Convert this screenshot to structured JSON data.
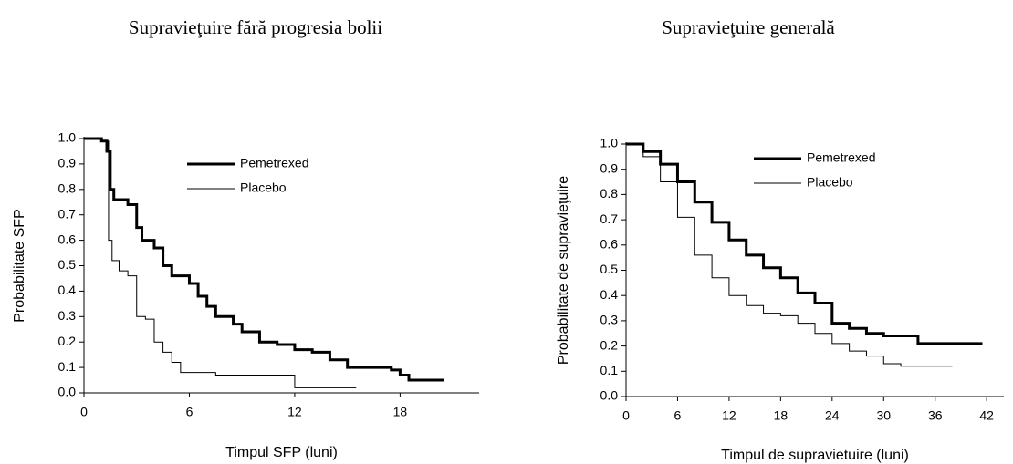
{
  "chart_data": [
    {
      "type": "line",
      "step": true,
      "title": "Supravieţuire fără progresia bolii",
      "x_label": "Timpul SFP (luni)",
      "y_label": "Probabilitate SFP",
      "xlim": [
        0,
        22.5
      ],
      "ylim": [
        0,
        1
      ],
      "xticks": [
        0,
        6,
        12,
        18
      ],
      "yticks": [
        {
          "value": 0,
          "label": "0.0"
        },
        0.1,
        0.2,
        0.3,
        0.4,
        0.5,
        0.6,
        0.7,
        0.8,
        0.9,
        {
          "value": 1,
          "label": "1.0"
        }
      ],
      "series": [
        {
          "name": "Pemetrexed",
          "color": "#000000",
          "line_width": 3,
          "x": [
            0,
            1,
            1.3,
            1.5,
            1.7,
            2.5,
            3,
            3.3,
            4,
            4.5,
            5,
            6,
            6.5,
            7,
            7.5,
            8.5,
            9,
            10,
            11,
            12,
            13,
            14,
            15,
            17.5,
            18,
            18.5,
            20.5
          ],
          "values": [
            1.0,
            0.99,
            0.95,
            0.8,
            0.76,
            0.74,
            0.65,
            0.6,
            0.57,
            0.5,
            0.46,
            0.43,
            0.38,
            0.34,
            0.3,
            0.27,
            0.24,
            0.2,
            0.19,
            0.17,
            0.16,
            0.13,
            0.1,
            0.09,
            0.07,
            0.05,
            0.05
          ]
        },
        {
          "name": "Placebo",
          "color": "#000000",
          "line_width": 1,
          "x": [
            0,
            1,
            1.4,
            1.6,
            2,
            2.5,
            3,
            3.5,
            4,
            4.5,
            5,
            5.5,
            7.5,
            12,
            15.5
          ],
          "values": [
            1.0,
            0.99,
            0.6,
            0.52,
            0.48,
            0.46,
            0.3,
            0.29,
            0.2,
            0.16,
            0.12,
            0.08,
            0.07,
            0.02,
            0.02
          ]
        }
      ]
    },
    {
      "type": "line",
      "step": true,
      "title": "Supravieţuire generală",
      "x_label": "Timpul de supravietuire (luni)",
      "y_label": "Probabilitate de supravieţuire",
      "xlim": [
        0,
        44
      ],
      "ylim": [
        0,
        1
      ],
      "xticks": [
        0,
        6,
        12,
        18,
        24,
        30,
        36,
        42
      ],
      "yticks": [
        {
          "value": 0,
          "label": "0.0"
        },
        0.1,
        0.2,
        0.3,
        0.4,
        0.5,
        0.6,
        0.7,
        0.8,
        0.9,
        {
          "value": 1,
          "label": "1.0"
        }
      ],
      "series": [
        {
          "name": "Pemetrexed",
          "color": "#000000",
          "line_width": 3,
          "x": [
            0,
            2,
            4,
            6,
            8,
            10,
            12,
            14,
            16,
            18,
            20,
            22,
            24,
            26,
            28,
            30,
            34,
            41.5
          ],
          "values": [
            1.0,
            0.97,
            0.92,
            0.85,
            0.77,
            0.69,
            0.62,
            0.56,
            0.51,
            0.47,
            0.41,
            0.37,
            0.29,
            0.27,
            0.25,
            0.24,
            0.21,
            0.21
          ]
        },
        {
          "name": "Placebo",
          "color": "#000000",
          "line_width": 1,
          "x": [
            0,
            2,
            4,
            6,
            8,
            10,
            12,
            14,
            16,
            18,
            20,
            22,
            24,
            26,
            28,
            30,
            32,
            38
          ],
          "values": [
            1.0,
            0.95,
            0.85,
            0.71,
            0.56,
            0.47,
            0.4,
            0.36,
            0.33,
            0.32,
            0.29,
            0.25,
            0.21,
            0.18,
            0.16,
            0.13,
            0.12,
            0.12
          ]
        }
      ]
    }
  ]
}
